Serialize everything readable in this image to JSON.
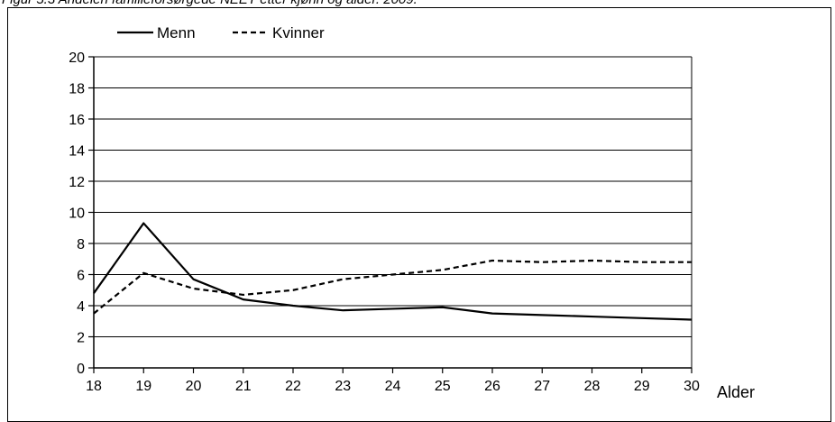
{
  "title": "Figur 5.3 Andelen familieforsørgede NEET etter kjønn og alder. 2009.",
  "chart_data": {
    "type": "line",
    "title": "Figur 5.3 Andelen familieforsørgede NEET etter kjønn og alder. 2009.",
    "xlabel": "Alder",
    "ylabel": "",
    "x": [
      18,
      19,
      20,
      21,
      22,
      23,
      24,
      25,
      26,
      27,
      28,
      29,
      30
    ],
    "xlim": [
      18,
      30
    ],
    "ylim": [
      0,
      20
    ],
    "yticks": [
      0,
      2,
      4,
      6,
      8,
      10,
      12,
      14,
      16,
      18,
      20
    ],
    "grid": true,
    "legend_position": "top-left",
    "series": [
      {
        "name": "Menn",
        "style": "solid",
        "color": "#000000",
        "values": [
          4.8,
          9.3,
          5.7,
          4.4,
          4.0,
          3.7,
          3.8,
          3.9,
          3.5,
          3.4,
          3.3,
          3.2,
          3.1
        ]
      },
      {
        "name": "Kvinner",
        "style": "dashed",
        "color": "#000000",
        "values": [
          3.5,
          6.1,
          5.1,
          4.7,
          5.0,
          5.7,
          6.0,
          6.3,
          6.9,
          6.8,
          6.9,
          6.8,
          6.8
        ]
      }
    ]
  }
}
